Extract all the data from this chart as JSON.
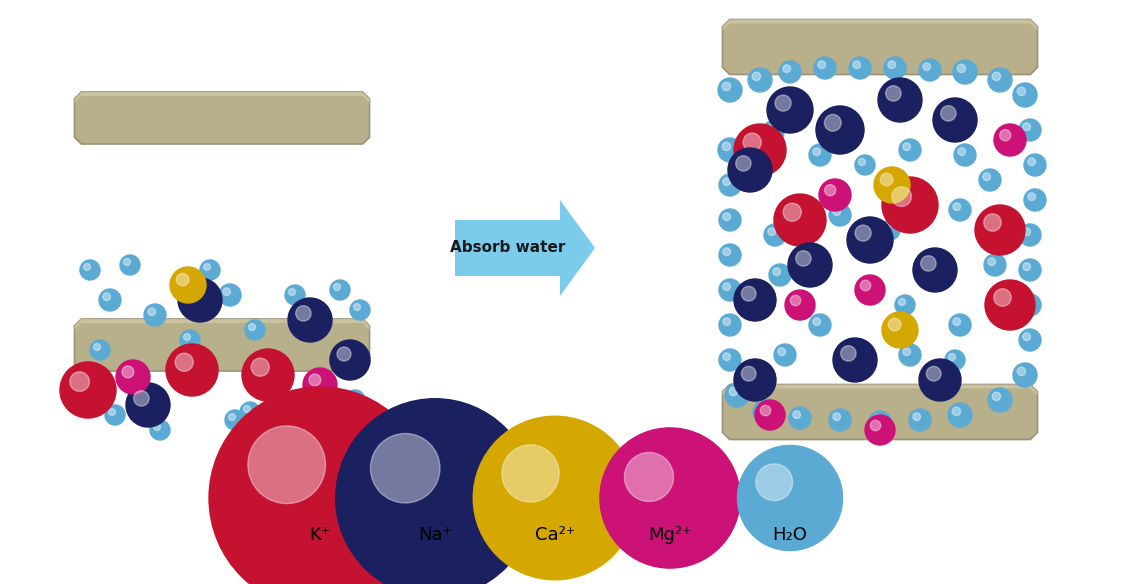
{
  "bg_color": "#ffffff",
  "clay_color": "#b8b08a",
  "clay_highlight": "#d4ccaa",
  "clay_shadow": "#9a9278",
  "arrow_color": "#6ec6e8",
  "arrow_text": "Absorb water",
  "arrow_text_color": "#1a1a1a",
  "colors": {
    "K": "#c41230",
    "Na": "#1a2060",
    "Ca": "#d4a800",
    "Mg": "#cc1177",
    "H2O": "#5baad4"
  },
  "legend_labels": [
    "K⁺",
    "Na⁺",
    "Ca²⁺",
    "Mg²⁺",
    "H₂O"
  ],
  "legend_colors": [
    "#c41230",
    "#1a2060",
    "#d4a800",
    "#cc1177",
    "#5baad4"
  ],
  "legend_radii": [
    0.19,
    0.17,
    0.14,
    0.12,
    0.09
  ]
}
